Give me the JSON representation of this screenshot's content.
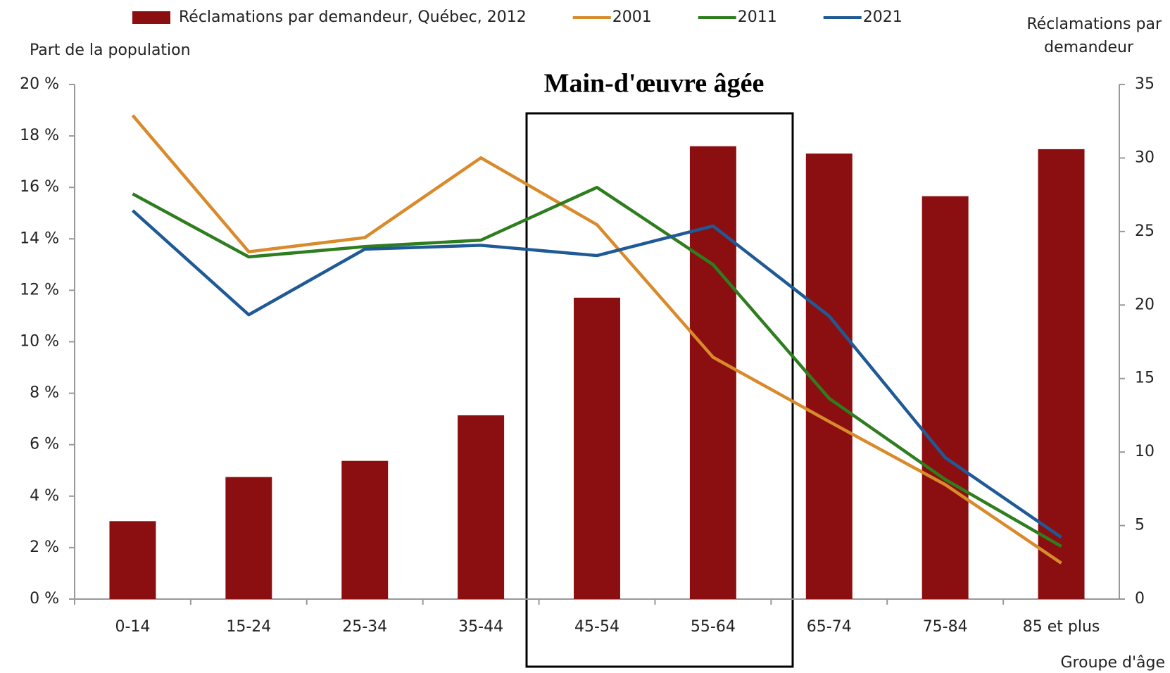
{
  "chart_data": {
    "type": "bar_line",
    "annotation": "Main-d'œuvre âgée",
    "ylabel": "Part de la population",
    "y2label": [
      "Réclamations par",
      "demandeur"
    ],
    "xlabel": "Groupe d'âge",
    "categories": [
      "0-14",
      "15-24",
      "25-34",
      "35-44",
      "45-54",
      "55-64",
      "65-74",
      "75-84",
      "85 et plus"
    ],
    "series": [
      {
        "name": "Réclamations par demandeur, Québec, 2012",
        "type": "bar",
        "axis": "y2",
        "color": "#8b0f10",
        "values": [
          5.3,
          8.3,
          9.4,
          12.5,
          20.5,
          30.8,
          30.3,
          27.4,
          30.6
        ]
      },
      {
        "name": "2001",
        "type": "line",
        "color": "#d98a2b",
        "values": [
          18.8,
          13.5,
          14.05,
          17.15,
          14.55,
          9.4,
          6.9,
          4.45,
          1.4
        ]
      },
      {
        "name": "2011",
        "type": "line",
        "color": "#2e7d1e",
        "values": [
          15.75,
          13.3,
          13.7,
          13.95,
          16.0,
          13.0,
          7.8,
          4.65,
          2.05
        ]
      },
      {
        "name": "2021",
        "type": "line",
        "color": "#1f5a96",
        "values": [
          15.1,
          11.05,
          13.6,
          13.75,
          13.35,
          14.5,
          11.0,
          5.5,
          2.4
        ]
      }
    ],
    "ylim": [
      0,
      20
    ],
    "yticks": [
      {
        "value": 0,
        "label": "0 %"
      },
      {
        "value": 2,
        "label": "2 %"
      },
      {
        "value": 4,
        "label": "4 %"
      },
      {
        "value": 6,
        "label": "6 %"
      },
      {
        "value": 8,
        "label": "8 %"
      },
      {
        "value": 10,
        "label": "10 %"
      },
      {
        "value": 12,
        "label": "12 %"
      },
      {
        "value": 14,
        "label": "14 %"
      },
      {
        "value": 16,
        "label": "16 %"
      },
      {
        "value": 18,
        "label": "18 %"
      },
      {
        "value": 20,
        "label": "20 %"
      }
    ],
    "y2lim": [
      0,
      35
    ],
    "y2ticks": [
      0,
      5,
      10,
      15,
      20,
      25,
      30,
      35
    ]
  }
}
